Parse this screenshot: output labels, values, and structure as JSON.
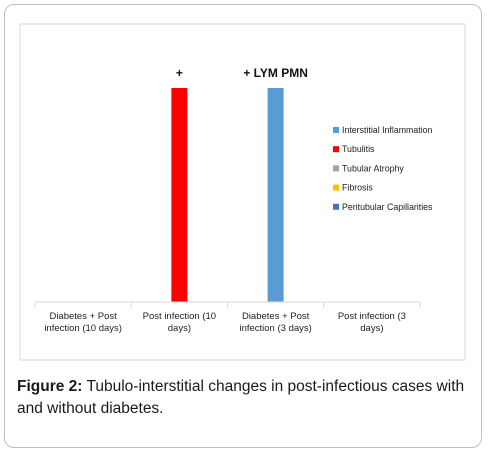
{
  "caption": {
    "label": "Figure 2:",
    "text": " Tubulo-interstitial changes in post-infectious cases with and without diabetes."
  },
  "chart_data": {
    "type": "bar",
    "title": "",
    "xlabel": "",
    "ylabel": "",
    "ylim": [
      0,
      1
    ],
    "grid": false,
    "legend_position": "right",
    "categories": [
      [
        "Diabetes + Post",
        "infection (10 days)"
      ],
      [
        "Post infection (10",
        "days)"
      ],
      [
        "Diabetes + Post",
        "infection (3 days)"
      ],
      [
        "Post infection (3",
        "days)"
      ]
    ],
    "series": [
      {
        "name": "Interstitial Inflammation",
        "color": "#5b9bd5",
        "values": [
          0,
          0,
          1,
          0
        ]
      },
      {
        "name": "Tubulitis",
        "color": "#ff0000",
        "values": [
          0,
          1,
          0,
          0
        ]
      },
      {
        "name": "Tubular Atrophy",
        "color": "#a5a5a5",
        "values": [
          0,
          0,
          0,
          0
        ]
      },
      {
        "name": "Fibrosis",
        "color": "#ffc000",
        "values": [
          0,
          0,
          0,
          0
        ]
      },
      {
        "name": "Peritubular Capillarities",
        "color": "#4472c4",
        "values": [
          0,
          0,
          0,
          0
        ]
      }
    ],
    "annotations": [
      {
        "text": "+",
        "category": 1,
        "series": "Tubulitis"
      },
      {
        "text": "+ LYM PMN",
        "category": 2,
        "series": "Interstitial Inflammation"
      }
    ]
  }
}
